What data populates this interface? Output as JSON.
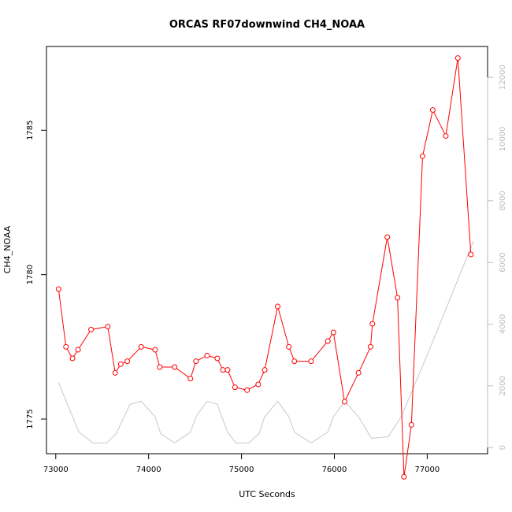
{
  "chart_data": {
    "type": "line",
    "title": "ORCAS RF07downwind CH4_NOAA",
    "xlabel": "UTC Seconds",
    "ylabel": "CH4_NOAA",
    "xlim": [
      72900,
      77650
    ],
    "ylim": [
      1773.8,
      1787.9
    ],
    "y2lim": [
      -200,
      13000
    ],
    "x_ticks": [
      73000,
      74000,
      75000,
      76000,
      77000
    ],
    "y_ticks": [
      1775,
      1780,
      1785
    ],
    "y2_ticks": [
      0,
      2000,
      4000,
      6000,
      8000,
      10000,
      12000
    ],
    "grid": false,
    "series": [
      {
        "role": "primary",
        "color": "#ff0000",
        "marker": "open-circle",
        "x": [
          73030,
          73110,
          73180,
          73240,
          73380,
          73560,
          73640,
          73700,
          73770,
          73920,
          74070,
          74120,
          74280,
          74450,
          74510,
          74630,
          74740,
          74800,
          74850,
          74930,
          75060,
          75180,
          75250,
          75390,
          75510,
          75570,
          75750,
          75930,
          75990,
          76110,
          76260,
          76390,
          76410,
          76570,
          76680,
          76750,
          76830,
          76950,
          77060,
          77200,
          77330,
          77470
        ],
        "y": [
          1779.5,
          1777.5,
          1777.1,
          1777.4,
          1778.1,
          1778.2,
          1776.6,
          1776.9,
          1777.0,
          1777.5,
          1777.4,
          1776.8,
          1776.8,
          1776.4,
          1777.0,
          1777.2,
          1777.1,
          1776.7,
          1776.7,
          1776.1,
          1776.0,
          1776.2,
          1776.7,
          1778.9,
          1777.5,
          1777.0,
          1777.0,
          1777.7,
          1778.0,
          1775.6,
          1776.6,
          1777.5,
          1778.3,
          1781.3,
          1779.2,
          1773.0,
          1774.8,
          1784.1,
          1785.7,
          1784.8,
          1787.5,
          1780.7
        ]
      },
      {
        "role": "secondary",
        "color": "#c8c8c8",
        "x": [
          73030,
          73250,
          73400,
          73550,
          73650,
          73800,
          73920,
          74070,
          74130,
          74280,
          74450,
          74510,
          74630,
          74740,
          74850,
          74940,
          75080,
          75190,
          75250,
          75390,
          75510,
          75570,
          75750,
          75930,
          75990,
          76110,
          76260,
          76400,
          76580,
          76720,
          77000,
          77500
        ],
        "y": [
          2100,
          500,
          150,
          150,
          450,
          1400,
          1500,
          1000,
          450,
          150,
          500,
          1000,
          1500,
          1400,
          500,
          150,
          150,
          450,
          1000,
          1500,
          1000,
          500,
          150,
          500,
          1000,
          1500,
          1000,
          300,
          350,
          1000,
          3000,
          6700
        ]
      }
    ]
  }
}
